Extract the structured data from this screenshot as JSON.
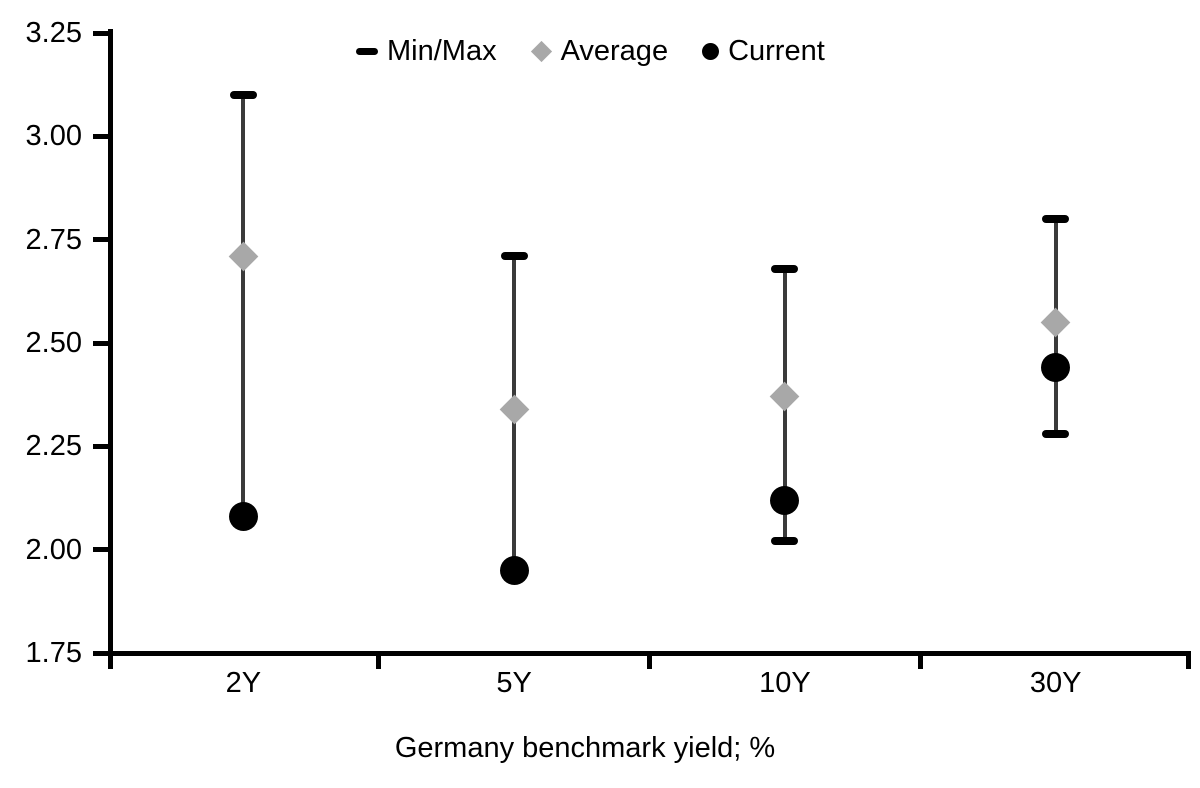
{
  "chart_data": {
    "type": "scatter",
    "subtype": "min-max-range",
    "title": "",
    "xlabel": "Germany benchmark yield; %",
    "ylabel": "",
    "categories": [
      "2Y",
      "5Y",
      "10Y",
      "30Y"
    ],
    "series": [
      {
        "name": "Min/Max",
        "marker": "dash",
        "color": "#000000",
        "min": [
          2.08,
          1.95,
          2.02,
          2.28
        ],
        "max": [
          3.1,
          2.71,
          2.68,
          2.8
        ]
      },
      {
        "name": "Average",
        "marker": "diamond",
        "color": "#a8a8a8",
        "values": [
          2.71,
          2.34,
          2.37,
          2.55
        ]
      },
      {
        "name": "Current",
        "marker": "circle",
        "color": "#000000",
        "values": [
          2.08,
          1.95,
          2.12,
          2.44
        ]
      }
    ],
    "ylim": [
      1.75,
      3.25
    ],
    "ytick_step": 0.25,
    "ytick_labels": [
      "3.25",
      "3.00",
      "2.75",
      "2.50",
      "2.25",
      "2.00",
      "1.75"
    ],
    "grid": false,
    "legend_position": "top-center",
    "colors": {
      "axis": "#000000",
      "range_line": "#3a3a3a",
      "text": "#000000",
      "background": "#ffffff"
    }
  }
}
